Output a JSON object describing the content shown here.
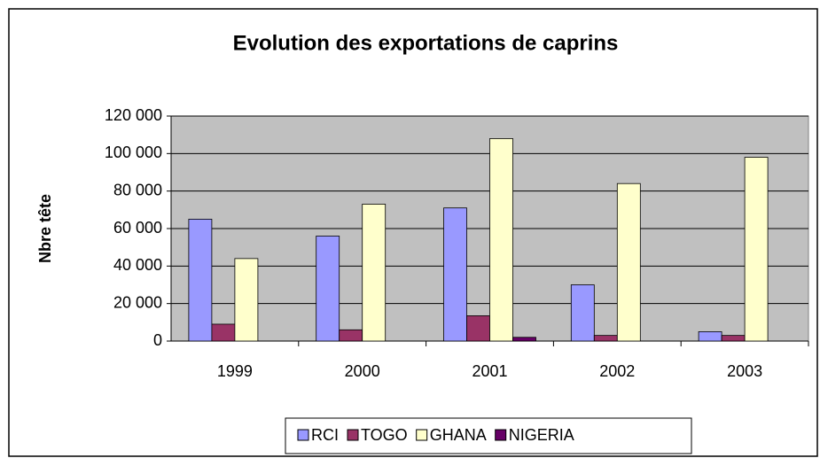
{
  "chart_data": {
    "type": "bar",
    "title": "Evolution des exportations de caprins",
    "y_label": "Nbre tête",
    "categories": [
      "1999",
      "2000",
      "2001",
      "2002",
      "2003"
    ],
    "series": [
      {
        "name": "RCI",
        "color": "#9999ff",
        "values": [
          65000,
          56000,
          71000,
          30000,
          5000
        ]
      },
      {
        "name": "TOGO",
        "color": "#993366",
        "values": [
          9000,
          6000,
          13500,
          3000,
          3000
        ]
      },
      {
        "name": "GHANA",
        "color": "#ffffcc",
        "values": [
          44000,
          73000,
          108000,
          84000,
          98000
        ]
      },
      {
        "name": "NIGERIA",
        "color": "#660066",
        "values": [
          0,
          0,
          2000,
          0,
          0
        ]
      }
    ],
    "ylim": [
      0,
      120000
    ],
    "yticks": [
      0,
      {
        "value": 20000,
        "label": "20 000"
      },
      {
        "value": 40000,
        "label": "40 000"
      },
      {
        "value": 60000,
        "label": "60 000"
      },
      {
        "value": 80000,
        "label": "80 000"
      },
      {
        "value": 100000,
        "label": "100 000"
      },
      {
        "value": 120000,
        "label": "120 000"
      }
    ],
    "grid": true,
    "legend": "bottom"
  }
}
